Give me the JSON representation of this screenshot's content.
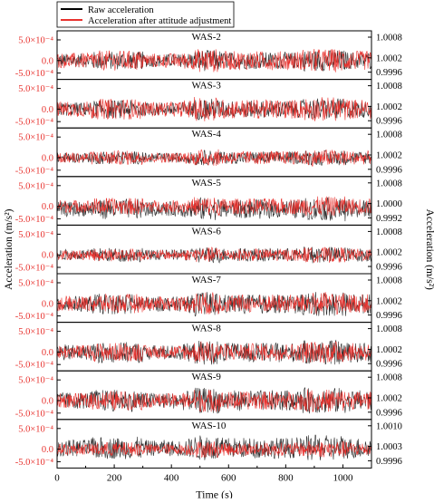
{
  "chart_data": {
    "type": "line",
    "xlabel": "Time (s)",
    "ylabel_left": "Acceleration (m/s²)",
    "ylabel_right": "Acceleration (m/s²)",
    "xlim": [
      0,
      1100
    ],
    "xticks": [
      0,
      200,
      400,
      600,
      800,
      1000
    ],
    "x_tick_labels": [
      "0",
      "200",
      "400",
      "600",
      "800",
      "1000"
    ],
    "legend_position": "top-left",
    "legend": [
      {
        "name": "Raw acceleration",
        "color": "#000000"
      },
      {
        "name": "Acceleration after attitude adjustment",
        "color": "#e8322e"
      }
    ],
    "left_axis_color": "#e8322e",
    "right_axis_color": "#000000",
    "panels": [
      {
        "title": "WAS-2",
        "left_ticks": [
          "5.0×10⁻⁴",
          "0.0",
          "-5.0×10⁻⁴"
        ],
        "right_ticks": [
          "1.0008",
          "1.0002",
          "0.9996"
        ],
        "raw_amplitude": 0.7,
        "adj_amplitude": 0.78,
        "raw_offset": 0
      },
      {
        "title": "WAS-3",
        "left_ticks": [
          "5.0×10⁻⁴",
          "0.0",
          "-5.0×10⁻⁴"
        ],
        "right_ticks": [
          "1.0008",
          "1.0002",
          "0.9996"
        ],
        "raw_amplitude": 0.7,
        "adj_amplitude": 0.8,
        "raw_offset": 0
      },
      {
        "title": "WAS-4",
        "left_ticks": [
          "5.0×10⁻⁴",
          "0.0",
          "-5.0×10⁻⁴"
        ],
        "right_ticks": [
          "1.0008",
          "1.0002",
          "0.9996"
        ],
        "raw_amplitude": 0.5,
        "adj_amplitude": 0.55,
        "raw_offset": 0
      },
      {
        "title": "WAS-5",
        "left_ticks": [
          "5.0×10⁻⁴",
          "0.0",
          "-5.0×10⁻⁴"
        ],
        "right_ticks": [
          "1.0008",
          "1.0000",
          "0.9992"
        ],
        "raw_amplitude": 0.75,
        "adj_amplitude": 0.65,
        "raw_offset": -0.25
      },
      {
        "title": "WAS-6",
        "left_ticks": [
          "5.0×10⁻⁴",
          "0.0",
          "-5.0×10⁻⁴"
        ],
        "right_ticks": [
          "1.0008",
          "1.0002",
          "0.9996"
        ],
        "raw_amplitude": 0.55,
        "adj_amplitude": 0.5,
        "raw_offset": 0
      },
      {
        "title": "WAS-7",
        "left_ticks": [
          "5.0×10⁻⁴",
          "0.0",
          "-5.0×10⁻⁴"
        ],
        "right_ticks": [
          "1.0008",
          "1.0002",
          "0.9996"
        ],
        "raw_amplitude": 0.8,
        "adj_amplitude": 0.75,
        "raw_offset": -0.05
      },
      {
        "title": "WAS-8",
        "left_ticks": [
          "5.0×10⁻⁴",
          "0.0",
          "-5.0×10⁻⁴"
        ],
        "right_ticks": [
          "1.0008",
          "1.0002",
          "0.9996"
        ],
        "raw_amplitude": 0.8,
        "adj_amplitude": 0.72,
        "raw_offset": -0.05
      },
      {
        "title": "WAS-9",
        "left_ticks": [
          "5.0×10⁻⁴",
          "0.0",
          "-5.0×10⁻⁴"
        ],
        "right_ticks": [
          "1.0008",
          "1.0002",
          "0.9996"
        ],
        "raw_amplitude": 0.85,
        "adj_amplitude": 0.75,
        "raw_offset": 0
      },
      {
        "title": "WAS-10",
        "left_ticks": [
          "5.0×10⁻⁴",
          "0.0",
          "-5.0×10⁻⁴"
        ],
        "right_ticks": [
          "1.0010",
          "1.0003",
          "0.9996"
        ],
        "raw_amplitude": 0.85,
        "adj_amplitude": 0.55,
        "raw_offset": 0.1
      }
    ]
  }
}
